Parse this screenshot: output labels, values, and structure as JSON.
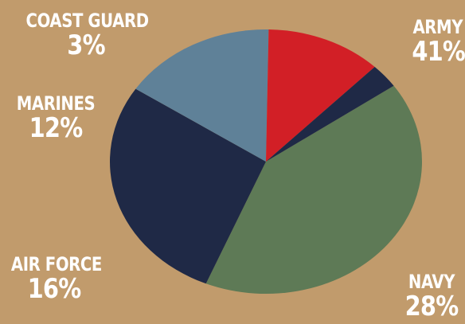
{
  "chart_data": {
    "type": "pie",
    "title": "",
    "slices": [
      {
        "label": "ARMY",
        "value": 41,
        "value_label": "41%",
        "color": "#5e7a56"
      },
      {
        "label": "NAVY",
        "value": 28,
        "value_label": "28%",
        "color": "#1f2946"
      },
      {
        "label": "AIR FORCE",
        "value": 16,
        "value_label": "16%",
        "color": "#5f8198"
      },
      {
        "label": "MARINES",
        "value": 12,
        "value_label": "12%",
        "color": "#d21f26"
      },
      {
        "label": "COAST GUARD",
        "value": 3,
        "value_label": "3%",
        "color": "#1f2946"
      }
    ],
    "background": "#c19b6c",
    "legend": "none"
  }
}
